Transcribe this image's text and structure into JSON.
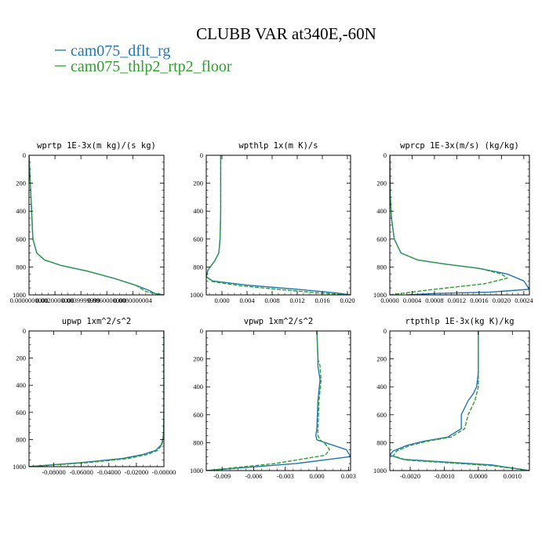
{
  "figure": {
    "title": "CLUBB VAR at340E,-60N",
    "legend": [
      {
        "label": "cam075_dflt_rg",
        "color": "#1f77b4"
      },
      {
        "label": "cam075_thlp2_rtp2_floor",
        "color": "#2ca02c"
      }
    ]
  },
  "chart_data": [
    {
      "type": "line",
      "title": "wprtp  1E-3x(m kg)/(s kg)",
      "xlim": [
        0.0,
        0.0104
      ],
      "ylim": [
        1000,
        0
      ],
      "xticks": [
        0.0,
        0.002,
        0.004,
        0.006,
        0.008
      ],
      "xtick_labels": [
        "0.0000000000",
        "0.0020000000",
        "0.0039999999",
        "0.0060000000",
        "0.0080000004"
      ],
      "yticks": [
        0,
        200,
        400,
        600,
        800,
        1000
      ],
      "ytick_labels": [
        "0",
        "200",
        "400",
        "600",
        "800",
        "1000"
      ],
      "series": [
        {
          "name": "cam075_dflt_rg",
          "x": [
            0.0,
            0.0001,
            0.0002,
            0.0003,
            0.0006,
            0.0012,
            0.0025,
            0.0045,
            0.0065,
            0.0082,
            0.0093,
            0.0097,
            0.0104
          ],
          "y": [
            0,
            200,
            400,
            600,
            700,
            750,
            790,
            830,
            880,
            930,
            970,
            990,
            1000
          ]
        },
        {
          "name": "cam075_thlp2_rtp2_floor",
          "x": [
            0.0,
            0.0001,
            0.0002,
            0.0003,
            0.0006,
            0.0012,
            0.0025,
            0.0045,
            0.0065,
            0.0082,
            0.009,
            0.0099,
            0.0104
          ],
          "y": [
            0,
            200,
            400,
            600,
            700,
            750,
            790,
            830,
            880,
            930,
            975,
            995,
            1000
          ]
        }
      ]
    },
    {
      "type": "line",
      "title": "wpthlp  1x(m K)/s",
      "xlim": [
        -0.0025,
        0.0205
      ],
      "ylim": [
        1000,
        0
      ],
      "xticks": [
        0.0,
        0.004,
        0.008,
        0.012,
        0.016,
        0.02
      ],
      "xtick_labels": [
        "0.000",
        "0.004",
        "0.008",
        "0.012",
        "0.016",
        "0.020"
      ],
      "yticks": [
        0,
        200,
        400,
        600,
        800,
        1000
      ],
      "ytick_labels": [
        "0",
        "200",
        "400",
        "600",
        "800",
        "1000"
      ],
      "series": [
        {
          "name": "cam075_dflt_rg",
          "x": [
            -0.0002,
            -0.0002,
            -0.0002,
            -0.0003,
            -0.0005,
            -0.0012,
            -0.0022,
            -0.0025,
            -0.0015,
            0.004,
            0.012,
            0.018,
            0.0205
          ],
          "y": [
            0,
            200,
            400,
            600,
            700,
            760,
            820,
            870,
            900,
            930,
            960,
            985,
            1000
          ]
        },
        {
          "name": "cam075_thlp2_rtp2_floor",
          "x": [
            -0.0002,
            -0.0002,
            -0.0002,
            -0.0003,
            -0.0005,
            -0.0012,
            -0.0022,
            -0.0025,
            -0.0015,
            0.003,
            0.01,
            0.016,
            0.0205
          ],
          "y": [
            0,
            200,
            400,
            600,
            700,
            760,
            820,
            870,
            905,
            935,
            965,
            988,
            1000
          ]
        }
      ]
    },
    {
      "type": "line",
      "title": "wprcp  1E-3x(m/s) (kg/kg)",
      "xlim": [
        0.0,
        0.0025
      ],
      "ylim": [
        1000,
        0
      ],
      "xticks": [
        0.0,
        0.0004,
        0.0008,
        0.0012,
        0.0016,
        0.002,
        0.0024
      ],
      "xtick_labels": [
        "0.0000",
        "0.0004",
        "0.0008",
        "0.0012",
        "0.0016",
        "0.0020",
        "0.0024"
      ],
      "yticks": [
        0,
        200,
        400,
        600,
        800,
        1000
      ],
      "ytick_labels": [
        "0",
        "200",
        "400",
        "600",
        "800",
        "1000"
      ],
      "series": [
        {
          "name": "cam075_dflt_rg",
          "x": [
            0.0,
            1e-05,
            3e-05,
            8e-05,
            0.0002,
            0.0005,
            0.001,
            0.0016,
            0.0021,
            0.0024,
            0.0025,
            0.0018,
            0.0008,
            0.0003
          ],
          "y": [
            0,
            300,
            450,
            600,
            700,
            750,
            780,
            810,
            850,
            900,
            960,
            980,
            990,
            1000
          ]
        },
        {
          "name": "cam075_thlp2_rtp2_floor",
          "x": [
            0.0,
            1e-05,
            3e-05,
            8e-05,
            0.0002,
            0.0005,
            0.001,
            0.0016,
            0.002,
            0.0021,
            0.0017,
            0.0008,
            0.0002,
            0.0
          ],
          "y": [
            0,
            300,
            450,
            600,
            700,
            750,
            780,
            810,
            850,
            880,
            920,
            960,
            990,
            1000
          ]
        }
      ]
    },
    {
      "type": "line",
      "title": "upwp  1xm^2/s^2",
      "xlim": [
        -0.098,
        0.0
      ],
      "ylim": [
        1000,
        0
      ],
      "xticks": [
        -0.08,
        -0.06,
        -0.04,
        -0.02,
        0.0
      ],
      "xtick_labels": [
        "-0.08000",
        "-0.06000",
        "-0.04000",
        "-0.02000",
        "-0.00000"
      ],
      "yticks": [
        0,
        200,
        400,
        600,
        800,
        1000
      ],
      "ytick_labels": [
        "0",
        "200",
        "400",
        "600",
        "800",
        "1000"
      ],
      "series": [
        {
          "name": "cam075_dflt_rg",
          "x": [
            0.0,
            0.0,
            0.0,
            0.0,
            -0.0002,
            -0.0008,
            -0.002,
            -0.006,
            -0.015,
            -0.03,
            -0.06,
            -0.098
          ],
          "y": [
            0,
            200,
            400,
            600,
            750,
            800,
            840,
            880,
            910,
            940,
            970,
            1000
          ]
        },
        {
          "name": "cam075_thlp2_rtp2_floor",
          "x": [
            0.0,
            0.0,
            0.0,
            0.0,
            -0.0002,
            -0.0005,
            -0.0015,
            -0.0045,
            -0.012,
            -0.026,
            -0.055,
            -0.098
          ],
          "y": [
            0,
            200,
            400,
            600,
            750,
            800,
            840,
            880,
            910,
            940,
            970,
            1000
          ]
        }
      ]
    },
    {
      "type": "line",
      "title": "vpwp  1xm^2/s^2",
      "xlim": [
        -0.0105,
        0.0032
      ],
      "ylim": [
        1000,
        0
      ],
      "xticks": [
        -0.009,
        -0.006,
        -0.003,
        0.0,
        0.003
      ],
      "xtick_labels": [
        "-0.009",
        "-0.006",
        "-0.003",
        "0.000",
        "0.003"
      ],
      "yticks": [
        0,
        200,
        400,
        600,
        800,
        1000
      ],
      "ytick_labels": [
        "0",
        "200",
        "400",
        "600",
        "800",
        "1000"
      ],
      "series": [
        {
          "name": "cam075_dflt_rg",
          "x": [
            0.0,
            0.0001,
            0.0001,
            0.0003,
            0.0001,
            0.0,
            -0.0001,
            0.0,
            0.0012,
            0.0028,
            0.0032,
            -0.002,
            -0.0105
          ],
          "y": [
            0,
            200,
            250,
            350,
            500,
            700,
            750,
            780,
            810,
            850,
            900,
            950,
            1000
          ]
        },
        {
          "name": "cam075_thlp2_rtp2_floor",
          "x": [
            0.0,
            0.0001,
            0.0003,
            0.0004,
            0.0002,
            0.0001,
            0.0001,
            0.0003,
            0.0008,
            0.0012,
            0.0008,
            -0.004,
            -0.0105
          ],
          "y": [
            0,
            200,
            250,
            350,
            500,
            700,
            750,
            780,
            810,
            850,
            890,
            950,
            1000
          ]
        }
      ]
    },
    {
      "type": "line",
      "title": "rtpthlp  1E-3x(kg K)/kg",
      "xlim": [
        -0.0026,
        0.0015
      ],
      "ylim": [
        1000,
        0
      ],
      "xticks": [
        -0.002,
        -0.001,
        0.0,
        0.001
      ],
      "xtick_labels": [
        "-0.0020",
        "-0.0010",
        "0.0000",
        "0.0010"
      ],
      "yticks": [
        0,
        200,
        400,
        600,
        800,
        1000
      ],
      "ytick_labels": [
        "0",
        "200",
        "400",
        "600",
        "800",
        "1000"
      ],
      "series": [
        {
          "name": "cam075_dflt_rg",
          "x": [
            0.0,
            0.0,
            -5e-05,
            -0.00015,
            -0.0003,
            -0.0004,
            -0.0005,
            -0.0005,
            -0.0009,
            -0.0016,
            -0.0021,
            -0.0025,
            -0.0026,
            -0.0022,
            0.0004,
            0.0015
          ],
          "y": [
            0,
            300,
            400,
            450,
            500,
            550,
            600,
            700,
            760,
            790,
            820,
            860,
            890,
            920,
            960,
            1000
          ]
        },
        {
          "name": "cam075_thlp2_rtp2_floor",
          "x": [
            0.0,
            0.0,
            0.0,
            -5e-05,
            -0.0001,
            -0.0002,
            -0.0003,
            -0.0004,
            -0.0008,
            -0.0015,
            -0.002,
            -0.0024,
            -0.0025,
            -0.0021,
            0.0004,
            0.0015
          ],
          "y": [
            0,
            300,
            400,
            450,
            500,
            550,
            600,
            700,
            760,
            790,
            820,
            860,
            895,
            925,
            965,
            1000
          ]
        }
      ]
    }
  ]
}
